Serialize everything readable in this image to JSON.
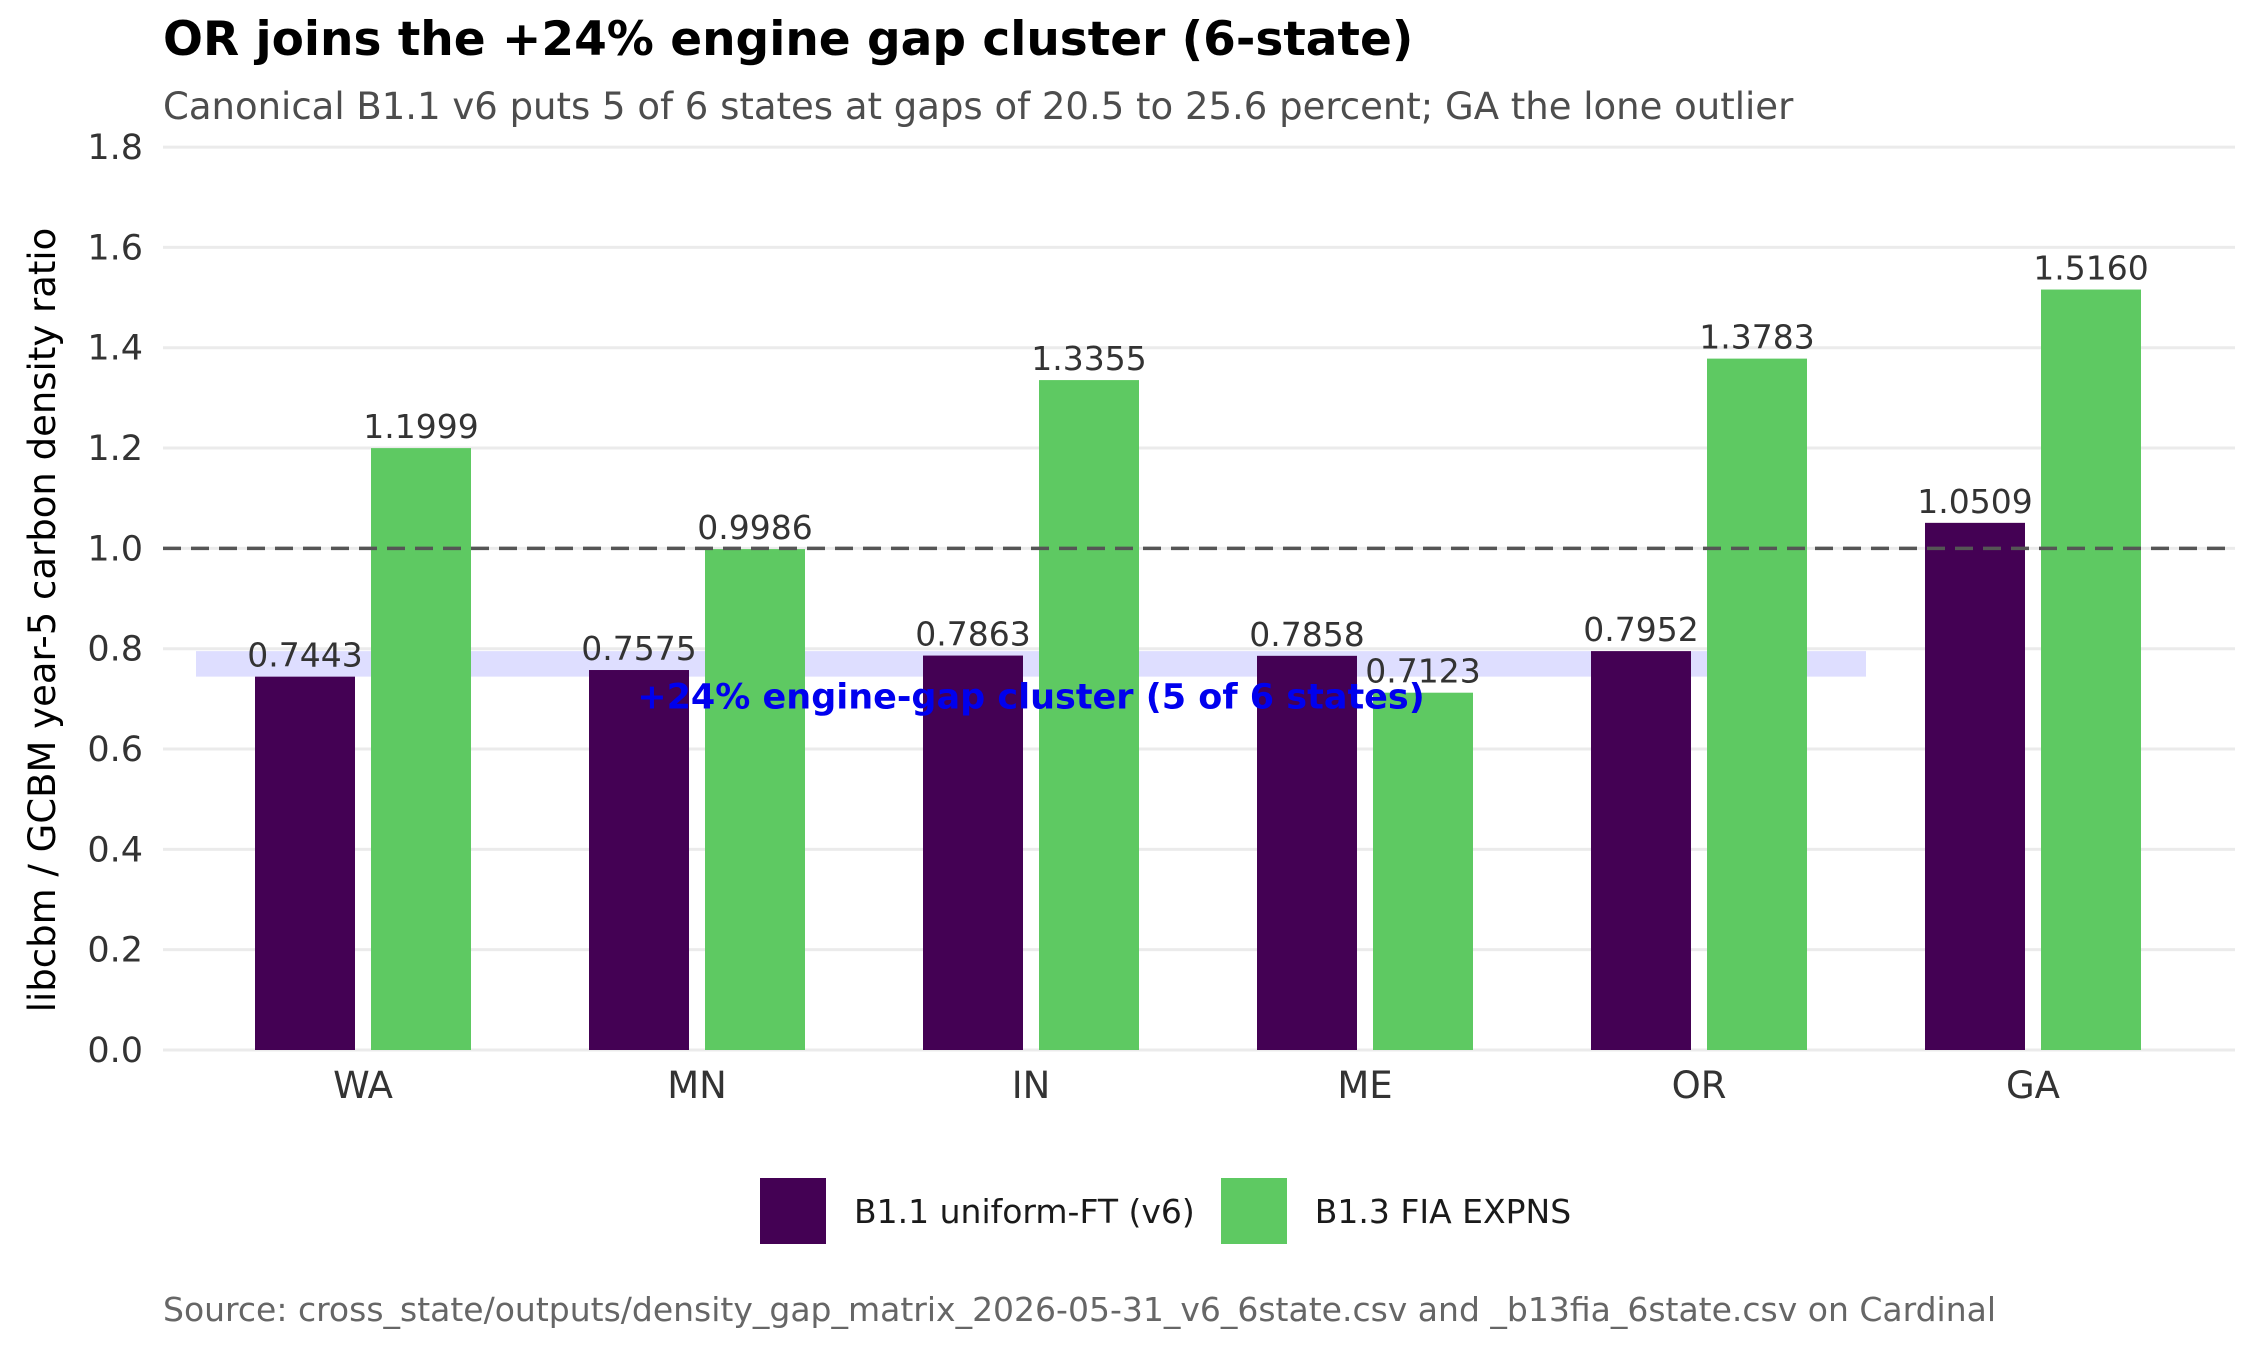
{
  "chart_data": {
    "type": "bar",
    "title": "OR joins the +24% engine gap cluster (6-state)",
    "subtitle": "Canonical B1.1 v6 puts 5 of 6 states at gaps of 20.5 to 25.6 percent; GA the lone outlier",
    "ylabel": "libcbm / GCBM year-5 carbon density ratio",
    "xlabel": "",
    "caption": "Source: cross_state/outputs/density_gap_matrix_2026-05-31_v6_6state.csv and _b13fia_6state.csv on Cardinal",
    "categories": [
      "WA",
      "MN",
      "IN",
      "ME",
      "OR",
      "GA"
    ],
    "ylim": [
      0,
      1.85
    ],
    "yticks": [
      0.0,
      0.2,
      0.4,
      0.6,
      0.8,
      1.0,
      1.2,
      1.4,
      1.6,
      1.8
    ],
    "ytick_labels": [
      "0.0",
      "0.2",
      "0.4",
      "0.6",
      "0.8",
      "1.0",
      "1.2",
      "1.4",
      "1.6",
      "1.8"
    ],
    "series": [
      {
        "name": "B1.1 uniform-FT (v6)",
        "color": "#440154",
        "values": [
          0.7443,
          0.7575,
          0.7863,
          0.7858,
          0.7952,
          1.0509
        ],
        "labels": [
          "0.7443",
          "0.7575",
          "0.7863",
          "0.7858",
          "0.7952",
          "1.0509"
        ]
      },
      {
        "name": "B1.3 FIA EXPNS",
        "color": "#5ec962",
        "values": [
          1.1999,
          0.9986,
          1.3355,
          0.7123,
          1.3783,
          1.516
        ],
        "labels": [
          "1.1999",
          "0.9986",
          "1.3355",
          "0.7123",
          "1.3783",
          "1.5160"
        ]
      }
    ],
    "reference_line": {
      "y": 1.0,
      "style": "dashed",
      "color": "#555555"
    },
    "band": {
      "ymin": 0.7443,
      "ymax": 0.7952,
      "category_start": "WA",
      "category_end": "OR",
      "color": "#0000ff",
      "label": "+24% engine-gap cluster (5 of 6 states)",
      "label_color": "#0000ee"
    },
    "grid": true,
    "legend_position": "bottom"
  }
}
